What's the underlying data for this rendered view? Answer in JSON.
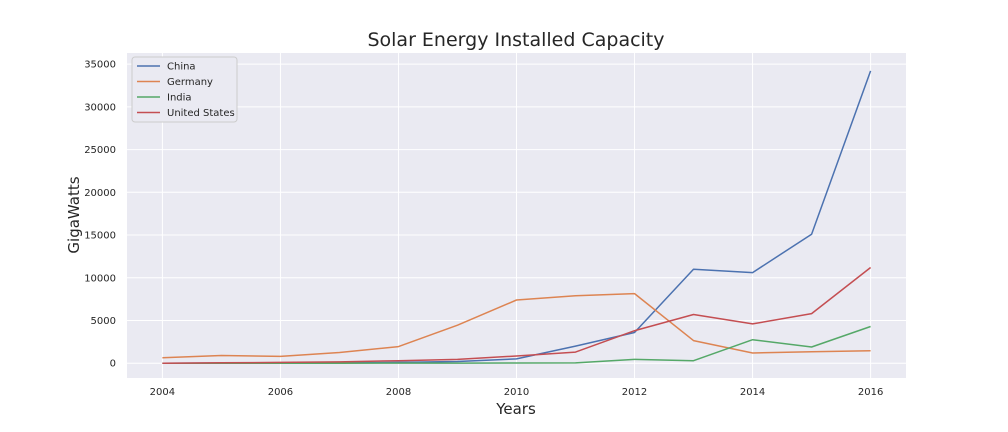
{
  "chart_data": {
    "type": "line",
    "title": "Solar Energy Installed Capacity",
    "xlabel": "Years",
    "ylabel": "GigaWatts",
    "x": [
      2004,
      2005,
      2006,
      2007,
      2008,
      2009,
      2010,
      2011,
      2012,
      2013,
      2014,
      2015,
      2016
    ],
    "xlim": [
      2003.4,
      2016.6
    ],
    "ylim": [
      -1730,
      36300
    ],
    "xticks": [
      2004,
      2006,
      2008,
      2010,
      2012,
      2014,
      2016
    ],
    "yticks": [
      0,
      5000,
      10000,
      15000,
      20000,
      25000,
      30000,
      35000
    ],
    "grid": true,
    "legend_position": "top-left",
    "background": "#eaeaf2",
    "grid_color": "#ffffff",
    "series": [
      {
        "name": "China",
        "color": "#4c72b0",
        "values": [
          0,
          20,
          30,
          50,
          100,
          200,
          500,
          2000,
          3600,
          11000,
          10600,
          15100,
          34200
        ]
      },
      {
        "name": "Germany",
        "color": "#dd8452",
        "values": [
          650,
          900,
          800,
          1250,
          1950,
          4450,
          7400,
          7900,
          8150,
          2650,
          1200,
          1350,
          1450
        ]
      },
      {
        "name": "India",
        "color": "#55a868",
        "values": [
          0,
          0,
          0,
          0,
          10,
          10,
          30,
          40,
          450,
          300,
          2750,
          1900,
          4300
        ]
      },
      {
        "name": "United States",
        "color": "#c44e52",
        "values": [
          0,
          50,
          100,
          150,
          300,
          450,
          850,
          1300,
          3800,
          5700,
          4600,
          5800,
          11200
        ]
      }
    ]
  }
}
